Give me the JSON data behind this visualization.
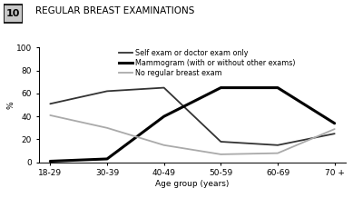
{
  "title": "REGULAR BREAST EXAMINATIONS",
  "graph_num": "10",
  "xlabel": "Age group (years)",
  "ylabel": "%",
  "x_labels": [
    "18-29",
    "30-39",
    "40-49",
    "50-59",
    "60-69",
    "70 +"
  ],
  "x_tick_pos": [
    0,
    1,
    2,
    3,
    4,
    5
  ],
  "self_exam": [
    51,
    62,
    65,
    18,
    15,
    25
  ],
  "mammogram": [
    1,
    3,
    40,
    65,
    65,
    34
  ],
  "no_exam": [
    41,
    30,
    15,
    7,
    8,
    29
  ],
  "ylim": [
    0,
    100
  ],
  "yticks": [
    0,
    20,
    40,
    60,
    80,
    100
  ],
  "color_self": "#333333",
  "color_mammogram": "#000000",
  "color_no_exam": "#aaaaaa",
  "legend_self": "Self exam or doctor exam only",
  "legend_mammogram": "Mammogram (with or without other exams)",
  "legend_no_exam": "No regular breast exam",
  "linewidth_self": 1.3,
  "linewidth_mammogram": 2.2,
  "linewidth_no_exam": 1.3,
  "bg_color": "#ffffff",
  "title_fontsize": 7.5,
  "axis_fontsize": 6.5,
  "legend_fontsize": 5.8
}
